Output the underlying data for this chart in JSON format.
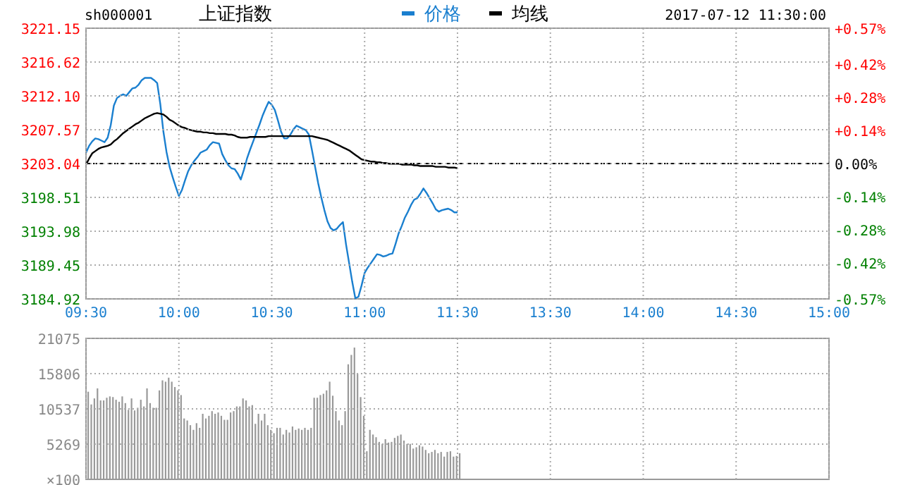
{
  "chart_data": [
    {
      "type": "line",
      "title": "上证指数",
      "annotations": [
        "sh000001",
        "2017-07-12 11:30:00"
      ],
      "legend": "top",
      "grid": true,
      "categories": [
        "09:30",
        null,
        null,
        null,
        null,
        null,
        null,
        null,
        null,
        null,
        null,
        null,
        null,
        null,
        null,
        null,
        null,
        null,
        null,
        null,
        null,
        null,
        null,
        null,
        null,
        null,
        null,
        null,
        null,
        null,
        "10:00",
        null,
        null,
        null,
        null,
        null,
        null,
        null,
        null,
        null,
        null,
        null,
        null,
        null,
        null,
        null,
        null,
        null,
        null,
        null,
        null,
        null,
        null,
        null,
        null,
        null,
        null,
        null,
        null,
        null,
        "10:30",
        null,
        null,
        null,
        null,
        null,
        null,
        null,
        null,
        null,
        null,
        null,
        null,
        null,
        null,
        null,
        null,
        null,
        null,
        null,
        null,
        null,
        null,
        null,
        null,
        null,
        null,
        null,
        null,
        null,
        "11:00",
        null,
        null,
        null,
        null,
        null,
        null,
        null,
        null,
        null,
        null,
        null,
        null,
        null,
        null,
        null,
        null,
        null,
        null,
        null,
        null,
        null,
        null,
        null,
        null,
        null,
        null,
        null,
        null,
        null,
        "11:30",
        null,
        null,
        null,
        null,
        null,
        null,
        null,
        null,
        null,
        null,
        null,
        null,
        null,
        null,
        null,
        null,
        null,
        null,
        null,
        null,
        null,
        null,
        null,
        null,
        null,
        null,
        null,
        null,
        null,
        "13:30",
        null,
        null,
        null,
        null,
        null,
        null,
        null,
        null,
        null,
        null,
        null,
        null,
        null,
        null,
        null,
        null,
        null,
        null,
        null,
        null,
        null,
        null,
        null,
        null,
        null,
        null,
        null,
        null,
        null,
        "14:00",
        null,
        null,
        null,
        null,
        null,
        null,
        null,
        null,
        null,
        null,
        null,
        null,
        null,
        null,
        null,
        null,
        null,
        null,
        null,
        null,
        null,
        null,
        null,
        null,
        null,
        null,
        null,
        null,
        null,
        "14:30",
        null,
        null,
        null,
        null,
        null,
        null,
        null,
        null,
        null,
        null,
        null,
        null,
        null,
        null,
        null,
        null,
        null,
        null,
        null,
        null,
        null,
        null,
        null,
        null,
        null,
        null,
        null,
        null,
        null,
        "15:00"
      ],
      "ylim": [
        3184.92,
        3221.15
      ],
      "yticks": [
        3184.92,
        3189.45,
        3193.98,
        3198.51,
        3203.04,
        3207.57,
        {
          "value": 3212.1,
          "label": "3212.10"
        },
        3216.62,
        3221.15
      ],
      "y2lim": [
        -0.57,
        0.57
      ],
      "y2ticks": [
        {
          "value": -0.57,
          "label": "-0.57%"
        },
        {
          "value": -0.42,
          "label": "-0.42%"
        },
        {
          "value": -0.28,
          "label": "-0.28%"
        },
        {
          "value": -0.14,
          "label": "-0.14%"
        },
        {
          "value": 0,
          "label": "0.00%"
        },
        {
          "value": 0.14,
          "label": "+0.14%"
        },
        {
          "value": 0.28,
          "label": "+0.28%"
        },
        {
          "value": 0.42,
          "label": "+0.42%"
        },
        {
          "value": 0.57,
          "label": "+0.57%"
        }
      ],
      "ref_lines": [
        {
          "axis": "y",
          "value": 3203.04,
          "color": "#000000",
          "line_style": "dashed"
        }
      ],
      "series": [
        {
          "name": "价格",
          "color": "#1a7fcf",
          "values": [
            3204.5,
            3205.4,
            3206.0,
            3206.4,
            3206.3,
            3206.1,
            3205.9,
            3206.5,
            3208.2,
            3210.8,
            3211.8,
            3212.1,
            3212.3,
            3212.1,
            3212.6,
            3213.1,
            3213.2,
            3213.6,
            3214.2,
            3214.5,
            3214.5,
            3214.5,
            3214.2,
            3213.8,
            3211.0,
            3207.3,
            3204.6,
            3202.6,
            3201.2,
            3199.9,
            3198.7,
            3199.5,
            3200.8,
            3202.0,
            3202.8,
            3203.4,
            3203.9,
            3204.5,
            3204.7,
            3204.9,
            3205.5,
            3205.9,
            3205.8,
            3205.7,
            3204.3,
            3203.5,
            3202.8,
            3202.4,
            3202.3,
            3201.7,
            3200.9,
            3202.2,
            3203.7,
            3204.9,
            3206.0,
            3207.1,
            3208.2,
            3209.4,
            3210.4,
            3211.3,
            3210.9,
            3210.2,
            3208.8,
            3207.3,
            3206.4,
            3206.4,
            3206.9,
            3207.6,
            3208.1,
            3207.9,
            3207.7,
            3207.5,
            3206.9,
            3204.8,
            3202.6,
            3200.4,
            3198.5,
            3196.8,
            3195.3,
            3194.4,
            3194.1,
            3194.3,
            3194.8,
            3195.2,
            3192.2,
            3189.7,
            3187.2,
            3185.0,
            3185.2,
            3186.7,
            3188.4,
            3189.1,
            3189.7,
            3190.3,
            3190.9,
            3190.8,
            3190.6,
            3190.7,
            3190.9,
            3191.0,
            3192.3,
            3193.7,
            3194.7,
            3195.8,
            3196.6,
            3197.5,
            3198.2,
            3198.4,
            3199.0,
            3199.7,
            3199.1,
            3198.4,
            3197.7,
            3196.9,
            3196.6,
            3196.8,
            3196.9,
            3197.0,
            3196.8,
            3196.5,
            3196.5,
            null,
            null,
            null,
            null,
            null,
            null,
            null,
            null,
            null,
            null,
            null,
            null,
            null,
            null,
            null,
            null,
            null,
            null,
            null,
            null,
            null,
            null,
            null,
            null,
            null,
            null,
            null,
            null,
            null,
            null,
            null,
            null,
            null,
            null,
            null,
            null,
            null,
            null,
            null,
            null,
            null,
            null,
            null,
            null,
            null,
            null,
            null,
            null,
            null,
            null,
            null,
            null,
            null,
            null,
            null,
            null,
            null,
            null,
            null,
            null,
            null,
            null,
            null,
            null,
            null,
            null,
            null,
            null,
            null,
            null,
            null,
            null,
            null,
            null,
            null,
            null,
            null,
            null,
            null,
            null,
            null,
            null,
            null,
            null,
            null,
            null,
            null,
            null,
            null,
            null,
            null,
            null,
            null,
            null,
            null,
            null,
            null,
            null,
            null,
            null,
            null,
            null,
            null,
            null,
            null,
            null,
            null,
            null,
            null,
            null,
            null,
            null,
            null,
            null,
            null,
            null,
            null,
            null,
            null,
            null
          ]
        },
        {
          "name": "均线",
          "color": "#000000",
          "values": [
            3202.9,
            3203.7,
            3204.4,
            3204.7,
            3205.0,
            3205.2,
            3205.3,
            3205.4,
            3205.6,
            3206.0,
            3206.3,
            3206.7,
            3207.1,
            3207.4,
            3207.7,
            3208.0,
            3208.3,
            3208.5,
            3208.8,
            3209.1,
            3209.3,
            3209.5,
            3209.7,
            3209.8,
            3209.7,
            3209.6,
            3209.3,
            3208.9,
            3208.7,
            3208.4,
            3208.1,
            3207.9,
            3207.8,
            3207.6,
            3207.5,
            3207.4,
            3207.3,
            3207.3,
            3207.2,
            3207.2,
            3207.1,
            3207.1,
            3207.0,
            3207.0,
            3207.0,
            3207.0,
            3206.9,
            3206.9,
            3206.8,
            3206.6,
            3206.5,
            3206.5,
            3206.5,
            3206.6,
            3206.6,
            3206.6,
            3206.6,
            3206.6,
            3206.6,
            3206.7,
            3206.7,
            3206.7,
            3206.7,
            3206.7,
            3206.7,
            3206.7,
            3206.7,
            3206.7,
            3206.7,
            3206.7,
            3206.7,
            3206.7,
            3206.7,
            3206.7,
            3206.6,
            3206.5,
            3206.4,
            3206.3,
            3206.2,
            3206.0,
            3205.8,
            3205.6,
            3205.4,
            3205.2,
            3205.0,
            3204.8,
            3204.5,
            3204.2,
            3203.9,
            3203.6,
            3203.5,
            3203.4,
            3203.3,
            3203.3,
            3203.2,
            3203.2,
            3203.1,
            3203.1,
            3203.0,
            3203.0,
            3203.0,
            3203.0,
            3202.9,
            3202.9,
            3202.9,
            3202.9,
            3202.8,
            3202.8,
            3202.7,
            3202.7,
            3202.7,
            3202.7,
            3202.7,
            3202.6,
            3202.6,
            3202.6,
            3202.6,
            3202.5,
            3202.5,
            3202.5,
            3202.4,
            null,
            null,
            null,
            null,
            null,
            null,
            null,
            null,
            null,
            null,
            null,
            null,
            null,
            null,
            null,
            null,
            null,
            null,
            null,
            null,
            null,
            null,
            null,
            null,
            null,
            null,
            null,
            null,
            null,
            null,
            null,
            null,
            null,
            null,
            null,
            null,
            null,
            null,
            null,
            null,
            null,
            null,
            null,
            null,
            null,
            null,
            null,
            null,
            null,
            null,
            null,
            null,
            null,
            null,
            null,
            null,
            null,
            null,
            null,
            null,
            null,
            null,
            null,
            null,
            null,
            null,
            null,
            null,
            null,
            null,
            null,
            null,
            null,
            null,
            null,
            null,
            null,
            null,
            null,
            null,
            null,
            null,
            null,
            null,
            null,
            null,
            null,
            null,
            null,
            null,
            null,
            null,
            null,
            null,
            null,
            null,
            null,
            null,
            null,
            null,
            null,
            null,
            null,
            null,
            null,
            null,
            null,
            null,
            null,
            null,
            null,
            null,
            null,
            null,
            null,
            null,
            null,
            null,
            null,
            null
          ]
        }
      ]
    },
    {
      "type": "bar",
      "grid": true,
      "tick_labels": "y",
      "color": "#999999",
      "ylabel": "×100",
      "categories": [
        null,
        null,
        null,
        null,
        null,
        null,
        null,
        null,
        null,
        null,
        null,
        null,
        null,
        null,
        null,
        null,
        null,
        null,
        null,
        null,
        null,
        null,
        null,
        null,
        null,
        null,
        null,
        null,
        null,
        null,
        null,
        null,
        null,
        null,
        null,
        null,
        null,
        null,
        null,
        null,
        null,
        null,
        null,
        null,
        null,
        null,
        null,
        null,
        null,
        null,
        null,
        null,
        null,
        null,
        null,
        null,
        null,
        null,
        null,
        null,
        null,
        null,
        null,
        null,
        null,
        null,
        null,
        null,
        null,
        null,
        null,
        null,
        null,
        null,
        null,
        null,
        null,
        null,
        null,
        null,
        null,
        null,
        null,
        null,
        null,
        null,
        null,
        null,
        null,
        null,
        null,
        null,
        null,
        null,
        null,
        null,
        null,
        null,
        null,
        null,
        null,
        null,
        null,
        null,
        null,
        null,
        null,
        null,
        null,
        null,
        null,
        null,
        null,
        null,
        null,
        null,
        null,
        null,
        null,
        null,
        null,
        null,
        null,
        null,
        null,
        null,
        null,
        null,
        null,
        null,
        null,
        null,
        null,
        null,
        null,
        null,
        null,
        null,
        null,
        null,
        null,
        null,
        null,
        null,
        null,
        null,
        null,
        null,
        null,
        null,
        null,
        null,
        null,
        null,
        null,
        null,
        null,
        null,
        null,
        null,
        null,
        null,
        null,
        null,
        null,
        null,
        null,
        null,
        null,
        null,
        null,
        null,
        null,
        null,
        null,
        null,
        null,
        null,
        null,
        null,
        null,
        null,
        null,
        null,
        null,
        null,
        null,
        null,
        null,
        null,
        null,
        null,
        null,
        null,
        null,
        null,
        null,
        null,
        null,
        null,
        null,
        null,
        null,
        null,
        null,
        null,
        null,
        null,
        null,
        null,
        null,
        null,
        null,
        null,
        null,
        null,
        null,
        null,
        null,
        null,
        null,
        null,
        null,
        null,
        null,
        null,
        null,
        null,
        null,
        null,
        null,
        null,
        null,
        null,
        null,
        null,
        null,
        null,
        null,
        null,
        null
      ],
      "ylim": [
        0,
        21075
      ],
      "yticks": [
        5269,
        10537,
        15806,
        21075
      ],
      "values": [
        13100,
        11200,
        12100,
        13600,
        11800,
        11800,
        12200,
        12400,
        12300,
        11900,
        11600,
        12400,
        11400,
        10400,
        12100,
        10300,
        10700,
        11900,
        10900,
        13600,
        11400,
        10700,
        10700,
        13300,
        14800,
        14600,
        15200,
        14600,
        13800,
        13300,
        12600,
        9100,
        8800,
        8100,
        7400,
        8400,
        7700,
        9800,
        9100,
        9500,
        10200,
        9800,
        10000,
        9500,
        8900,
        8900,
        10000,
        10200,
        10900,
        10900,
        12100,
        11800,
        10900,
        11100,
        8300,
        9800,
        8800,
        9800,
        8100,
        7400,
        6900,
        7700,
        7700,
        6700,
        7400,
        7000,
        7900,
        7400,
        7600,
        7400,
        7700,
        7400,
        7700,
        12200,
        12200,
        12600,
        12800,
        13300,
        14600,
        12500,
        10200,
        8800,
        8100,
        10200,
        17200,
        18600,
        19700,
        15800,
        12300,
        9500,
        4200,
        7400,
        6700,
        6300,
        5600,
        5300,
        6000,
        5500,
        5600,
        6200,
        6500,
        6700,
        5800,
        5300,
        5300,
        4600,
        4800,
        5100,
        4900,
        4400,
        3900,
        4100,
        4400,
        3900,
        4100,
        3400,
        4100,
        4200,
        3400,
        3500,
        3900,
        null,
        null,
        null,
        null,
        null,
        null,
        null,
        null,
        null,
        null,
        null,
        null,
        null,
        null,
        null,
        null,
        null,
        null,
        null,
        null,
        null,
        null,
        null,
        null,
        null,
        null,
        null,
        null,
        null,
        null,
        null,
        null,
        null,
        null,
        null,
        null,
        null,
        null,
        null,
        null,
        null,
        null,
        null,
        null,
        null,
        null,
        null,
        null,
        null,
        null,
        null,
        null,
        null,
        null,
        null,
        null,
        null,
        null,
        null,
        null,
        null,
        null,
        null,
        null,
        null,
        null,
        null,
        null,
        null,
        null,
        null,
        null,
        null,
        null,
        null,
        null,
        null,
        null,
        null,
        null,
        null,
        null,
        null,
        null,
        null,
        null,
        null,
        null,
        null,
        null,
        null,
        null,
        null,
        null,
        null,
        null,
        null,
        null,
        null,
        null,
        null,
        null,
        null,
        null,
        null,
        null,
        null,
        null,
        null,
        null,
        null,
        null,
        null,
        null,
        null,
        null,
        null,
        null,
        null,
        null
      ]
    }
  ]
}
